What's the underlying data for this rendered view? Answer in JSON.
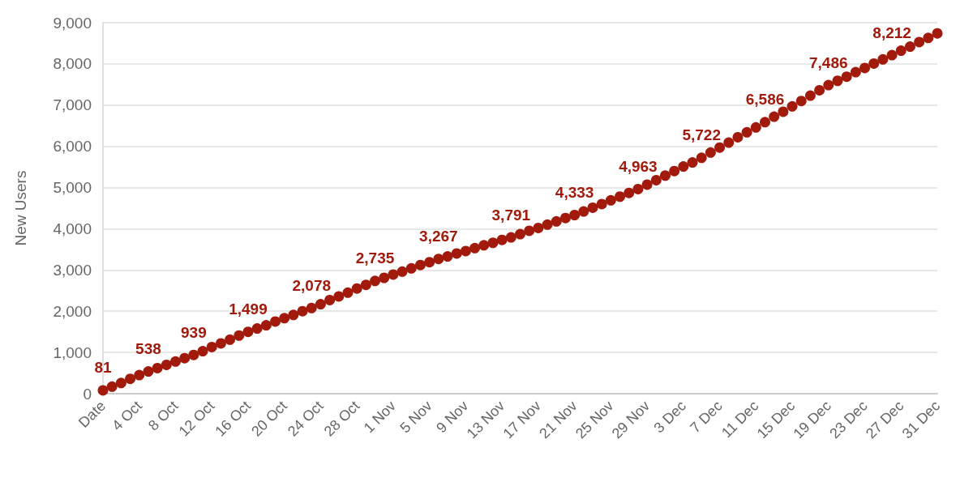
{
  "chart_data": {
    "type": "scatter",
    "ylabel": "New Users",
    "categories": [
      "Date",
      null,
      null,
      null,
      "4 Oct",
      null,
      null,
      null,
      "8 Oct",
      null,
      null,
      null,
      "12 Oct",
      null,
      null,
      null,
      "16 Oct",
      null,
      null,
      null,
      "20 Oct",
      null,
      null,
      null,
      "24 Oct",
      null,
      null,
      null,
      "28 Oct",
      null,
      null,
      null,
      "1 Nov",
      null,
      null,
      null,
      "5 Nov",
      null,
      null,
      null,
      "9 Nov",
      null,
      null,
      null,
      "13 Nov",
      null,
      null,
      null,
      "17 Nov",
      null,
      null,
      null,
      "21 Nov",
      null,
      null,
      null,
      "25 Nov",
      null,
      null,
      null,
      "29 Nov",
      null,
      null,
      null,
      "3 Dec",
      null,
      null,
      null,
      "7 Dec",
      null,
      null,
      null,
      "11 Dec",
      null,
      null,
      null,
      "15 Dec",
      null,
      null,
      null,
      "19 Dec",
      null,
      null,
      null,
      "23 Dec",
      null,
      null,
      null,
      "27 Dec",
      null,
      null,
      null,
      "31 Dec"
    ],
    "series": [
      {
        "color": "#a11a0b",
        "values": [
          81,
          170,
          260,
          360,
          450,
          538,
          620,
          700,
          780,
          860,
          939,
          1030,
          1130,
          1220,
          1310,
          1410,
          1499,
          1580,
          1660,
          1750,
          1830,
          1910,
          2000,
          2078,
          2170,
          2270,
          2360,
          2450,
          2550,
          2640,
          2735,
          2810,
          2890,
          2960,
          3040,
          3120,
          3190,
          3267,
          3330,
          3400,
          3460,
          3530,
          3600,
          3660,
          3730,
          3791,
          3870,
          3950,
          4020,
          4100,
          4180,
          4260,
          4333,
          4420,
          4510,
          4600,
          4690,
          4780,
          4870,
          4963,
          5070,
          5180,
          5290,
          5400,
          5510,
          5610,
          5722,
          5850,
          5970,
          6090,
          6220,
          6340,
          6460,
          6586,
          6720,
          6840,
          6970,
          7100,
          7230,
          7360,
          7486,
          7590,
          7690,
          7800,
          7900,
          8010,
          8110,
          8212,
          8320,
          8420,
          8530,
          8630,
          8740
        ],
        "value_labels": [
          "81",
          null,
          null,
          null,
          null,
          "538",
          null,
          null,
          null,
          null,
          "939",
          null,
          null,
          null,
          null,
          null,
          "1,499",
          null,
          null,
          null,
          null,
          null,
          null,
          "2,078",
          null,
          null,
          null,
          null,
          null,
          null,
          "2,735",
          null,
          null,
          null,
          null,
          null,
          null,
          "3,267",
          null,
          null,
          null,
          null,
          null,
          null,
          null,
          "3,791",
          null,
          null,
          null,
          null,
          null,
          null,
          "4,333",
          null,
          null,
          null,
          null,
          null,
          null,
          "4,963",
          null,
          null,
          null,
          null,
          null,
          null,
          "5,722",
          null,
          null,
          null,
          null,
          null,
          null,
          "6,586",
          null,
          null,
          null,
          null,
          null,
          null,
          "7,486",
          null,
          null,
          null,
          null,
          null,
          null,
          "8,212",
          null,
          null,
          null,
          null,
          null
        ]
      }
    ],
    "ylim": [
      0,
      9000
    ],
    "yticks": [
      {
        "value": 0,
        "label": "0"
      },
      {
        "value": 1000,
        "label": "1,000"
      },
      {
        "value": 2000,
        "label": "2,000"
      },
      {
        "value": 3000,
        "label": "3,000"
      },
      {
        "value": 4000,
        "label": "4,000"
      },
      {
        "value": 5000,
        "label": "5,000"
      },
      {
        "value": 6000,
        "label": "6,000"
      },
      {
        "value": 7000,
        "label": "7,000"
      },
      {
        "value": 8000,
        "label": "8,000"
      },
      {
        "value": 9000,
        "label": "9,000"
      }
    ],
    "grid": "y",
    "marker": "circle"
  }
}
